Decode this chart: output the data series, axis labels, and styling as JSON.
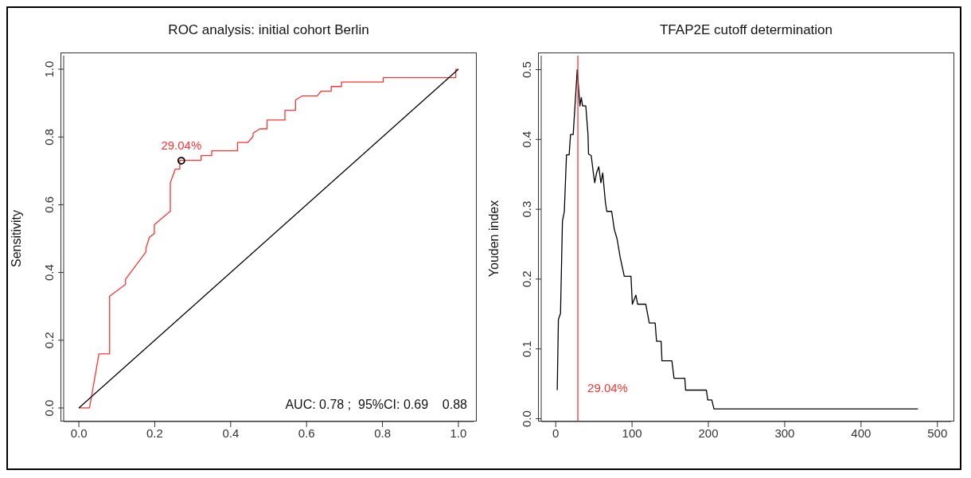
{
  "chart_data": [
    {
      "type": "line",
      "title": "ROC analysis: initial cohort Berlin",
      "ylabel": "Sensitivity",
      "xlim": [
        -0.04,
        1.04
      ],
      "ylim": [
        -0.04,
        1.04
      ],
      "xticks": [
        {
          "value": 0,
          "label": "0.0"
        },
        {
          "value": 0.2,
          "label": "0.2"
        },
        {
          "value": 0.4,
          "label": "0.4"
        },
        {
          "value": 0.6,
          "label": "0.6"
        },
        {
          "value": 0.8,
          "label": "0.8"
        },
        {
          "value": 1,
          "label": "1.0"
        }
      ],
      "yticks": [
        {
          "value": 0,
          "label": "0.0"
        },
        {
          "value": 0.2,
          "label": "0.2"
        },
        {
          "value": 0.4,
          "label": "0.4"
        },
        {
          "value": 0.6,
          "label": "0.6"
        },
        {
          "value": 0.8,
          "label": "0.8"
        },
        {
          "value": 1,
          "label": "1.0"
        }
      ],
      "series": [
        {
          "color": "#ff3333",
          "x": [
            0,
            0.028,
            0.053,
            0.081,
            0.081,
            0.123,
            0.123,
            0.177,
            0.177,
            0.186,
            0.199,
            0.199,
            0.241,
            0.241,
            0.254,
            0.266,
            0.266,
            0.322,
            0.322,
            0.35,
            0.35,
            0.418,
            0.418,
            0.445,
            0.459,
            0.459,
            0.477,
            0.496,
            0.496,
            0.543,
            0.543,
            0.571,
            0.571,
            0.588,
            0.628,
            0.638,
            0.665,
            0.665,
            0.692,
            0.692,
            0.802,
            0.802,
            0.993,
            0.993,
            1
          ],
          "values": [
            0,
            0,
            0.16,
            0.16,
            0.33,
            0.365,
            0.38,
            0.461,
            0.473,
            0.504,
            0.515,
            0.541,
            0.581,
            0.665,
            0.705,
            0.705,
            0.731,
            0.731,
            0.745,
            0.745,
            0.759,
            0.759,
            0.784,
            0.784,
            0.801,
            0.811,
            0.824,
            0.824,
            0.85,
            0.85,
            0.879,
            0.879,
            0.909,
            0.921,
            0.921,
            0.935,
            0.935,
            0.949,
            0.949,
            0.962,
            0.962,
            0.975,
            0.975,
            1,
            1
          ]
        },
        {
          "color": "#000000",
          "x": [
            0,
            1
          ],
          "values": [
            0,
            1
          ]
        },
        {
          "type": "scatter",
          "color": "#000000",
          "marker": "circle",
          "x": [
            0.27
          ],
          "values": [
            0.73
          ]
        }
      ],
      "annotations": [
        {
          "text": "29.04%",
          "x": 0.27,
          "y": 0.73
        },
        "AUC: 0.78 ;  95%CI: 0.69    0.88"
      ]
    },
    {
      "type": "line",
      "title": "TFAP2E cutoff determination",
      "ylabel": "Youden index",
      "xlim": [
        -19,
        518
      ],
      "ylim": [
        -0.004,
        0.52
      ],
      "xticks": [
        0,
        100,
        200,
        300,
        400,
        500
      ],
      "yticks": [
        {
          "value": 0,
          "label": "0.0"
        },
        {
          "value": 0.1,
          "label": "0.1"
        },
        {
          "value": 0.2,
          "label": "0.2"
        },
        {
          "value": 0.3,
          "label": "0.3"
        },
        {
          "value": 0.4,
          "label": "0.4"
        },
        {
          "value": 0.5,
          "label": "0.5"
        }
      ],
      "series": [
        {
          "color": "#000000",
          "x": [
            2,
            3.5,
            6.3,
            8.8,
            11.3,
            14.1,
            17.6,
            19.4,
            22.9,
            28.2,
            31.7,
            33.5,
            35.2,
            39.4,
            42.3,
            43,
            46.5,
            49.3,
            51.1,
            53.5,
            56.4,
            59.2,
            61.6,
            65.2,
            66.9,
            73.3,
            76.8,
            80.3,
            84.5,
            89.8,
            98.6,
            100.4,
            105,
            107.4,
            118,
            122.6,
            130.3,
            132.1,
            138.1,
            139.2,
            152.2,
            155,
            169.1,
            170.2,
            197.4,
            199.2,
            204.5,
            207.3,
            474.6
          ],
          "values": [
            0.041,
            0.142,
            0.151,
            0.283,
            0.297,
            0.378,
            0.378,
            0.407,
            0.407,
            0.5,
            0.448,
            0.46,
            0.448,
            0.448,
            0.407,
            0.379,
            0.377,
            0.352,
            0.338,
            0.352,
            0.361,
            0.338,
            0.352,
            0.309,
            0.297,
            0.297,
            0.271,
            0.258,
            0.231,
            0.204,
            0.204,
            0.164,
            0.177,
            0.164,
            0.164,
            0.137,
            0.137,
            0.111,
            0.111,
            0.083,
            0.083,
            0.058,
            0.058,
            0.041,
            0.041,
            0.027,
            0.027,
            0.014,
            0.014
          ]
        }
      ],
      "ref_lines": [
        {
          "axis": "x",
          "value": 29.04,
          "label": "29.04%",
          "color": "#ff3333"
        }
      ]
    }
  ]
}
